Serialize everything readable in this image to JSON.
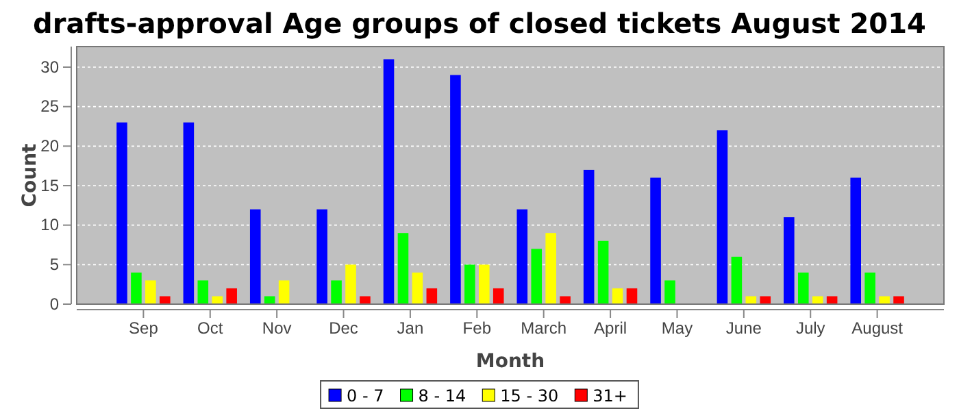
{
  "chart_data": {
    "type": "bar",
    "title": "drafts-approval Age groups of closed tickets August 2014",
    "xlabel": "Month",
    "ylabel": "Count",
    "categories": [
      "Sep",
      "Oct",
      "Nov",
      "Dec",
      "Jan",
      "Feb",
      "March",
      "April",
      "May",
      "June",
      "July",
      "August"
    ],
    "series": [
      {
        "name": "0 - 7",
        "color": "#0000ff",
        "values": [
          23,
          23,
          12,
          12,
          31,
          29,
          12,
          17,
          16,
          22,
          11,
          16
        ]
      },
      {
        "name": "8 - 14",
        "color": "#00ff00",
        "values": [
          4,
          3,
          1,
          3,
          9,
          5,
          7,
          8,
          3,
          6,
          4,
          4
        ]
      },
      {
        "name": "15 - 30",
        "color": "#ffff00",
        "values": [
          3,
          1,
          3,
          5,
          4,
          5,
          9,
          2,
          0,
          1,
          1,
          1
        ]
      },
      {
        "name": "31+",
        "color": "#ff0000",
        "values": [
          1,
          2,
          0,
          1,
          2,
          2,
          1,
          2,
          0,
          1,
          1,
          1
        ]
      }
    ],
    "ylim": [
      0,
      32.6
    ],
    "yticks": [
      0,
      5,
      10,
      15,
      20,
      25,
      30
    ],
    "grid": "y",
    "legend": "bottom"
  }
}
